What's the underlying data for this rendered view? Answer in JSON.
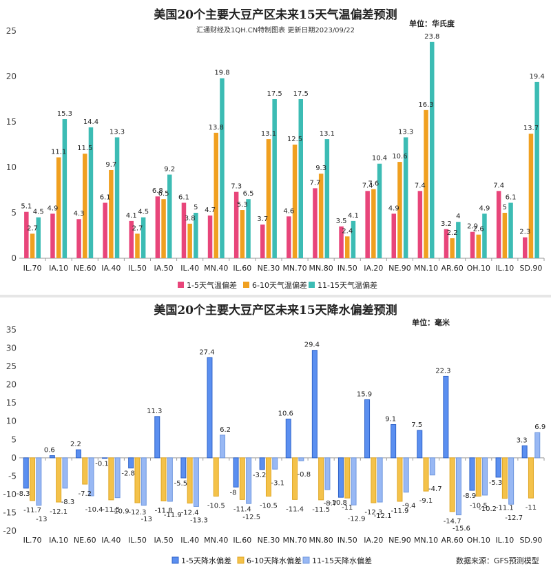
{
  "categories": [
    "IL.70",
    "IA.10",
    "NE.60",
    "IA.40",
    "IL.50",
    "IA.50",
    "IL.40",
    "MN.40",
    "IL.60",
    "NE.30",
    "MN.70",
    "MN.80",
    "IN.50",
    "IA.20",
    "NE.90",
    "MN.10",
    "AR.60",
    "OH.10",
    "IL.10",
    "SD.90"
  ],
  "temperature": {
    "title": "美国20个主要大豆产区未来15天气温偏差预测",
    "subtitle": "汇通财经及1QH.CN特制图表 更新日期2023/09/22",
    "unit": "单位：华氏度",
    "colors": [
      "#e8457a",
      "#f0a020",
      "#3cbcb4"
    ],
    "chart_data": {
      "type": "bar",
      "title": "美国20个主要大豆产区未来15天气温偏差预测",
      "ylabel": "",
      "ylim": [
        0,
        25
      ],
      "yticks": [
        0,
        5,
        10,
        15,
        20,
        25
      ],
      "grid": false,
      "legend": "bottom",
      "categories": [
        "IL.70",
        "IA.10",
        "NE.60",
        "IA.40",
        "IL.50",
        "IA.50",
        "IL.40",
        "MN.40",
        "IL.60",
        "NE.30",
        "MN.70",
        "MN.80",
        "IN.50",
        "IA.20",
        "NE.90",
        "MN.10",
        "AR.60",
        "OH.10",
        "IL.10",
        "SD.90"
      ],
      "series": [
        {
          "name": "1-5天气温偏差",
          "values": [
            5.1,
            4.9,
            4.3,
            6.1,
            4.1,
            6.8,
            6.1,
            4.7,
            7.3,
            3.7,
            4.6,
            7.7,
            3.5,
            7.4,
            4.9,
            7.4,
            3.2,
            2.9,
            7.4,
            2.3
          ]
        },
        {
          "name": "6-10天气温偏差",
          "values": [
            2.7,
            11.1,
            11.5,
            9.7,
            2.7,
            6.5,
            3.8,
            13.8,
            5.3,
            13.1,
            12.5,
            9.3,
            2.4,
            7.6,
            10.6,
            16.3,
            2.2,
            2.6,
            5,
            13.7
          ]
        },
        {
          "name": "11-15天气温偏差",
          "values": [
            4.5,
            15.3,
            14.4,
            13.3,
            4.5,
            9.2,
            5,
            19.8,
            6.5,
            17.5,
            17.5,
            13.1,
            4.1,
            10.4,
            13.3,
            23.8,
            4,
            4.9,
            6.1,
            19.4
          ]
        }
      ]
    }
  },
  "precipitation": {
    "title": "美国20个主要大豆产区未来15天降水偏差预测",
    "unit": "单位：毫米",
    "source": "数据来源：GFS预测模型",
    "colors": [
      "#5b8ff0",
      "#f4c24a",
      "#98b8f4"
    ],
    "chart_data": {
      "type": "bar",
      "title": "美国20个主要大豆产区未来15天降水偏差预测",
      "ylabel": "",
      "ylim": [
        -20,
        35
      ],
      "yticks": [
        -20,
        -15,
        -10,
        -5,
        0,
        5,
        10,
        15,
        20,
        25,
        30,
        35
      ],
      "grid": false,
      "legend": "bottom",
      "categories": [
        "IL.70",
        "IA.10",
        "NE.60",
        "IA.40",
        "IL.50",
        "IA.50",
        "IL.40",
        "MN.40",
        "IL.60",
        "NE.30",
        "MN.70",
        "MN.80",
        "IN.50",
        "IA.20",
        "NE.90",
        "MN.10",
        "AR.60",
        "OH.10",
        "IL.10",
        "SD.90"
      ],
      "series": [
        {
          "name": "1-5天降水偏差",
          "values": [
            -8.3,
            0.6,
            2.2,
            -0.1,
            -2.8,
            11.3,
            -5.5,
            27.4,
            -8,
            -3.2,
            10.6,
            29.4,
            -10.8,
            15.9,
            9.1,
            7.5,
            22.3,
            -8.9,
            -5.3,
            3.3
          ]
        },
        {
          "name": "6-10天降水偏差",
          "values": [
            -11.7,
            -12.1,
            -7.2,
            -11.5,
            -12.3,
            -11.8,
            -12.4,
            -10.5,
            -11.4,
            -10.5,
            -11.4,
            -11.5,
            -11,
            -12.3,
            -11.9,
            -9.1,
            -14.7,
            -10.5,
            -11.1,
            -11
          ]
        },
        {
          "name": "11-15天降水偏差",
          "values": [
            -13,
            -8.3,
            -10.4,
            -10.9,
            -13,
            -11.9,
            -13.3,
            6.2,
            -12.5,
            -3.1,
            -0.8,
            -8.7,
            -12.9,
            -12.1,
            -9.4,
            -4.7,
            -15.6,
            -10.2,
            -12.7,
            6.9
          ]
        }
      ]
    }
  }
}
